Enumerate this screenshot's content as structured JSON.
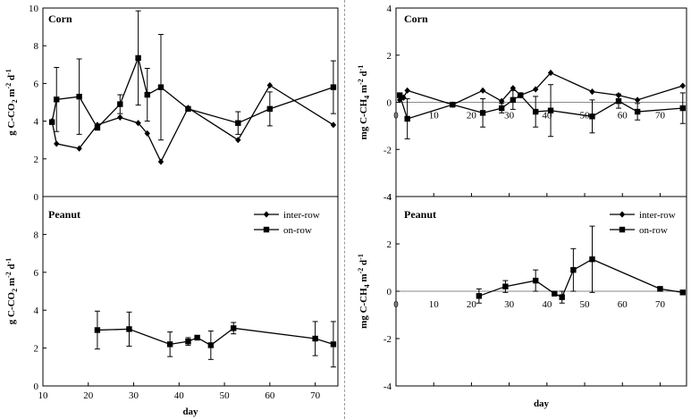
{
  "chart_data": [
    {
      "id": "corn-co2",
      "type": "line",
      "title": "Corn",
      "ylabel_main": "g C-CO",
      "ylabel_sub": "2",
      "ylabel_unit": " m",
      "ylabel_sup": "-2",
      "ylabel_tail": " d",
      "ylabel_sup2": "-1",
      "xlabel": "",
      "xlim": [
        10,
        75
      ],
      "ylim": [
        0,
        10
      ],
      "xticks": [],
      "yticks": [
        0,
        2,
        4,
        6,
        8,
        10
      ],
      "zero_line": false,
      "series": [
        {
          "name": "inter-row",
          "marker": "diamond",
          "x": [
            12,
            13,
            18,
            22,
            27,
            31,
            33,
            36,
            42,
            53,
            60,
            74
          ],
          "y": [
            4.0,
            2.8,
            2.55,
            3.8,
            4.2,
            3.9,
            3.35,
            1.85,
            4.7,
            3.0,
            5.9,
            3.8
          ],
          "err": []
        },
        {
          "name": "on-row",
          "marker": "square",
          "x": [
            12,
            13,
            18,
            22,
            27,
            31,
            33,
            36,
            42,
            53,
            60,
            74
          ],
          "y": [
            3.95,
            5.15,
            5.3,
            3.65,
            4.9,
            7.35,
            5.4,
            5.8,
            4.65,
            3.9,
            4.65,
            5.8
          ],
          "err": [
            0,
            1.7,
            2.0,
            0,
            0.5,
            2.5,
            1.4,
            2.8,
            0,
            0.6,
            0.9,
            1.4
          ]
        }
      ]
    },
    {
      "id": "corn-ch4",
      "type": "line",
      "title": "Corn",
      "ylabel_main": "mg C-CH",
      "ylabel_sub": "4",
      "ylabel_unit": " m",
      "ylabel_sup": "-2",
      "ylabel_tail": " d",
      "ylabel_sup2": "-1",
      "xlabel": "",
      "xlim": [
        0,
        77
      ],
      "ylim": [
        -4,
        4
      ],
      "xticks": [
        0,
        10,
        20,
        30,
        40,
        50,
        60,
        70
      ],
      "yticks": [
        -4,
        -2,
        0,
        2,
        4
      ],
      "zero_line": true,
      "series": [
        {
          "name": "inter-row",
          "marker": "diamond",
          "x": [
            1,
            2,
            3,
            15,
            23,
            28,
            31,
            33,
            37,
            41,
            52,
            59,
            64,
            76
          ],
          "y": [
            0.1,
            0.2,
            0.5,
            -0.1,
            0.5,
            0.05,
            0.6,
            0.3,
            0.55,
            1.25,
            0.45,
            0.3,
            0.1,
            0.7
          ],
          "err": []
        },
        {
          "name": "on-row",
          "marker": "square",
          "x": [
            1,
            3,
            15,
            23,
            28,
            31,
            33,
            37,
            41,
            52,
            59,
            64,
            76
          ],
          "y": [
            0.3,
            -0.7,
            -0.1,
            -0.45,
            -0.25,
            0.1,
            0.3,
            -0.4,
            -0.35,
            -0.6,
            0.05,
            -0.4,
            -0.25
          ],
          "err": [
            0,
            0.85,
            0,
            0.6,
            0.2,
            0.4,
            0,
            0.65,
            1.1,
            0.7,
            0.3,
            0.35,
            0.65
          ]
        }
      ]
    },
    {
      "id": "peanut-co2",
      "type": "line",
      "title": "Peanut",
      "ylabel_main": "g C-CO",
      "ylabel_sub": "2",
      "ylabel_unit": " m",
      "ylabel_sup": "-2",
      "ylabel_tail": " d",
      "ylabel_sup2": "-1",
      "xlabel": "day",
      "xlim": [
        10,
        75
      ],
      "ylim": [
        0,
        10
      ],
      "xticks": [
        10,
        20,
        30,
        40,
        50,
        60,
        70
      ],
      "yticks": [
        0,
        2,
        4,
        6,
        8
      ],
      "zero_line": false,
      "legend": [
        "inter-row",
        "on-row"
      ],
      "series": [
        {
          "name": "on-row",
          "marker": "square",
          "x": [
            22,
            29,
            38,
            42,
            44,
            47,
            52,
            70,
            74
          ],
          "y": [
            2.95,
            3.0,
            2.2,
            2.35,
            2.55,
            2.15,
            3.05,
            2.5,
            2.2
          ],
          "err": [
            1.0,
            0.9,
            0.65,
            0.2,
            0.1,
            0.75,
            0.3,
            0.9,
            1.2
          ]
        }
      ]
    },
    {
      "id": "peanut-ch4",
      "type": "line",
      "title": "Peanut",
      "ylabel_main": "mg C-CH",
      "ylabel_sub": "4",
      "ylabel_unit": " m",
      "ylabel_sup": "-2",
      "ylabel_tail": " d",
      "ylabel_sup2": "-1",
      "xlabel": "day",
      "xlim": [
        0,
        77
      ],
      "ylim": [
        -4,
        4
      ],
      "xticks": [
        0,
        10,
        20,
        30,
        40,
        50,
        60,
        70
      ],
      "yticks": [
        -4,
        -2,
        0,
        2,
        4
      ],
      "zero_line": true,
      "legend": [
        "inter-row",
        "on-row"
      ],
      "series": [
        {
          "name": "on-row",
          "marker": "square",
          "x": [
            22,
            29,
            37,
            42,
            44,
            47,
            52,
            70,
            76
          ],
          "y": [
            -0.2,
            0.2,
            0.45,
            -0.1,
            -0.25,
            0.9,
            1.35,
            0.1,
            -0.05
          ],
          "err": [
            0.3,
            0.25,
            0.45,
            0,
            0.25,
            0.9,
            1.4,
            0,
            0
          ]
        }
      ]
    }
  ]
}
